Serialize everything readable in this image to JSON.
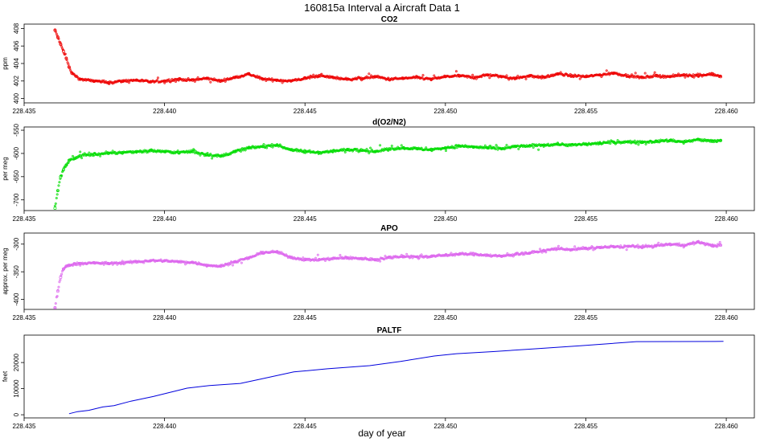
{
  "figure": {
    "title": "160815a   Interval a Aircraft Data 1",
    "xlabel": "day of year"
  },
  "chart_data": [
    {
      "type": "scatter",
      "title": "CO2",
      "ylabel": "ppm",
      "color": "#ee0000",
      "xlim": [
        228.435,
        228.461
      ],
      "ylim": [
        399.5,
        408.5
      ],
      "xticks": [
        "228.435",
        "228.440",
        "228.445",
        "228.450",
        "228.455",
        "228.460"
      ],
      "yticks": [
        "400",
        "402",
        "404",
        "406",
        "408"
      ],
      "series": [
        {
          "x": [
            228.4361,
            228.4362,
            228.4363,
            228.4364,
            228.4365,
            228.4366,
            228.4367,
            228.437,
            228.4375,
            228.438,
            228.4385,
            228.439,
            228.4395,
            228.44,
            228.4405,
            228.441,
            228.4415,
            228.442,
            228.4425,
            228.443,
            228.4435,
            228.444,
            228.4445,
            228.445,
            228.4455,
            228.446,
            228.4465,
            228.447,
            228.4475,
            228.448,
            228.4485,
            228.449,
            228.4495,
            228.45,
            228.4505,
            228.451,
            228.4515,
            228.452,
            228.4525,
            228.453,
            228.4535,
            228.454,
            228.4545,
            228.455,
            228.4555,
            228.456,
            228.4565,
            228.457,
            228.4575,
            228.458,
            228.4585,
            228.459,
            228.4595,
            228.4598
          ],
          "y": [
            407.8,
            407.0,
            406.2,
            405.4,
            404.6,
            403.6,
            402.9,
            402.2,
            402.0,
            401.8,
            402.0,
            402.1,
            401.9,
            402.0,
            402.2,
            402.1,
            402.3,
            402.0,
            402.4,
            402.8,
            402.2,
            402.1,
            402.0,
            402.3,
            402.6,
            402.4,
            402.2,
            402.3,
            402.5,
            402.2,
            402.3,
            402.4,
            402.2,
            402.5,
            402.6,
            402.4,
            402.7,
            402.5,
            402.3,
            402.6,
            402.4,
            402.8,
            402.6,
            402.5,
            402.7,
            402.9,
            402.6,
            402.4,
            402.6,
            402.5,
            402.7,
            402.6,
            402.8,
            402.5
          ]
        }
      ]
    },
    {
      "type": "scatter",
      "title": "d(O2/N2)",
      "ylabel": "per meg",
      "color": "#00dd00",
      "xlim": [
        228.435,
        228.461
      ],
      "ylim": [
        -723,
        -543
      ],
      "xticks": [
        "228.435",
        "228.440",
        "228.445",
        "228.450",
        "228.455",
        "228.460"
      ],
      "yticks": [
        "-550",
        "-600",
        "-650",
        "-700"
      ],
      "series": [
        {
          "x": [
            228.4361,
            228.4362,
            228.4363,
            228.4364,
            228.4365,
            228.4366,
            228.4368,
            228.437,
            228.4375,
            228.438,
            228.4385,
            228.439,
            228.4395,
            228.44,
            228.4405,
            228.441,
            228.4415,
            228.442,
            228.4425,
            228.443,
            228.4435,
            228.444,
            228.4445,
            228.445,
            228.4455,
            228.446,
            228.4465,
            228.447,
            228.4475,
            228.448,
            228.4485,
            228.449,
            228.4495,
            228.45,
            228.4505,
            228.451,
            228.4515,
            228.452,
            228.4525,
            228.453,
            228.4535,
            228.454,
            228.4545,
            228.455,
            228.4555,
            228.456,
            228.4565,
            228.457,
            228.4575,
            228.458,
            228.4585,
            228.459,
            228.4595,
            228.4598
          ],
          "y": [
            -718,
            -680,
            -650,
            -635,
            -625,
            -615,
            -610,
            -605,
            -602,
            -600,
            -598,
            -596,
            -594,
            -596,
            -598,
            -596,
            -602,
            -606,
            -596,
            -588,
            -585,
            -582,
            -592,
            -596,
            -598,
            -595,
            -592,
            -592,
            -596,
            -590,
            -588,
            -590,
            -592,
            -588,
            -584,
            -586,
            -588,
            -590,
            -585,
            -584,
            -582,
            -580,
            -582,
            -580,
            -578,
            -576,
            -575,
            -576,
            -574,
            -572,
            -575,
            -570,
            -574,
            -572
          ]
        }
      ]
    },
    {
      "type": "scatter",
      "title": "APO",
      "ylabel": "approx. per meg",
      "color": "#dd66ee",
      "xlim": [
        228.435,
        228.461
      ],
      "ylim": [
        -418,
        -280
      ],
      "xticks": [
        "228.435",
        "228.440",
        "228.445",
        "228.450",
        "228.455",
        "228.460"
      ],
      "yticks": [
        "-300",
        "-350",
        "-400"
      ],
      "series": [
        {
          "x": [
            228.4361,
            228.4362,
            228.4363,
            228.4364,
            228.4365,
            228.4366,
            228.4368,
            228.437,
            228.4375,
            228.438,
            228.4385,
            228.439,
            228.4395,
            228.44,
            228.4405,
            228.441,
            228.4415,
            228.442,
            228.4425,
            228.443,
            228.4435,
            228.444,
            228.4445,
            228.445,
            228.4455,
            228.446,
            228.4465,
            228.447,
            228.4475,
            228.448,
            228.4485,
            228.449,
            228.4495,
            228.45,
            228.4505,
            228.451,
            228.4515,
            228.452,
            228.4525,
            228.453,
            228.4535,
            228.454,
            228.4545,
            228.455,
            228.4555,
            228.456,
            228.4565,
            228.457,
            228.4575,
            228.458,
            228.4585,
            228.459,
            228.4595,
            228.4598
          ],
          "y": [
            -415,
            -385,
            -360,
            -345,
            -340,
            -338,
            -336,
            -335,
            -334,
            -335,
            -334,
            -332,
            -330,
            -330,
            -332,
            -333,
            -338,
            -340,
            -332,
            -325,
            -315,
            -314,
            -324,
            -328,
            -328,
            -326,
            -325,
            -326,
            -328,
            -324,
            -322,
            -323,
            -322,
            -320,
            -318,
            -318,
            -320,
            -322,
            -318,
            -316,
            -312,
            -308,
            -310,
            -308,
            -306,
            -305,
            -304,
            -305,
            -303,
            -300,
            -302,
            -296,
            -303,
            -302
          ]
        }
      ]
    },
    {
      "type": "line",
      "title": "PALTF",
      "ylabel": "feet",
      "color": "#0000dd",
      "xlim": [
        228.435,
        228.461
      ],
      "ylim": [
        -1200,
        30500
      ],
      "xticks": [
        "228.435",
        "228.440",
        "228.445",
        "228.450",
        "228.455",
        "228.460"
      ],
      "yticks": [
        "0",
        "10000",
        "20000"
      ],
      "series": [
        {
          "x": [
            228.4366,
            228.4369,
            228.4373,
            228.4378,
            228.4382,
            228.4388,
            228.4396,
            228.4408,
            228.4416,
            228.4427,
            228.4434,
            228.4446,
            228.4458,
            228.4473,
            228.4484,
            228.4496,
            228.4504,
            228.4517,
            228.4531,
            228.4548,
            228.4568,
            228.4599
          ],
          "y": [
            400,
            1200,
            1700,
            3000,
            3500,
            5200,
            7000,
            10200,
            11200,
            12000,
            13600,
            16400,
            17600,
            18800,
            20400,
            22500,
            23400,
            24200,
            25200,
            26400,
            28000,
            28100
          ]
        }
      ]
    }
  ]
}
